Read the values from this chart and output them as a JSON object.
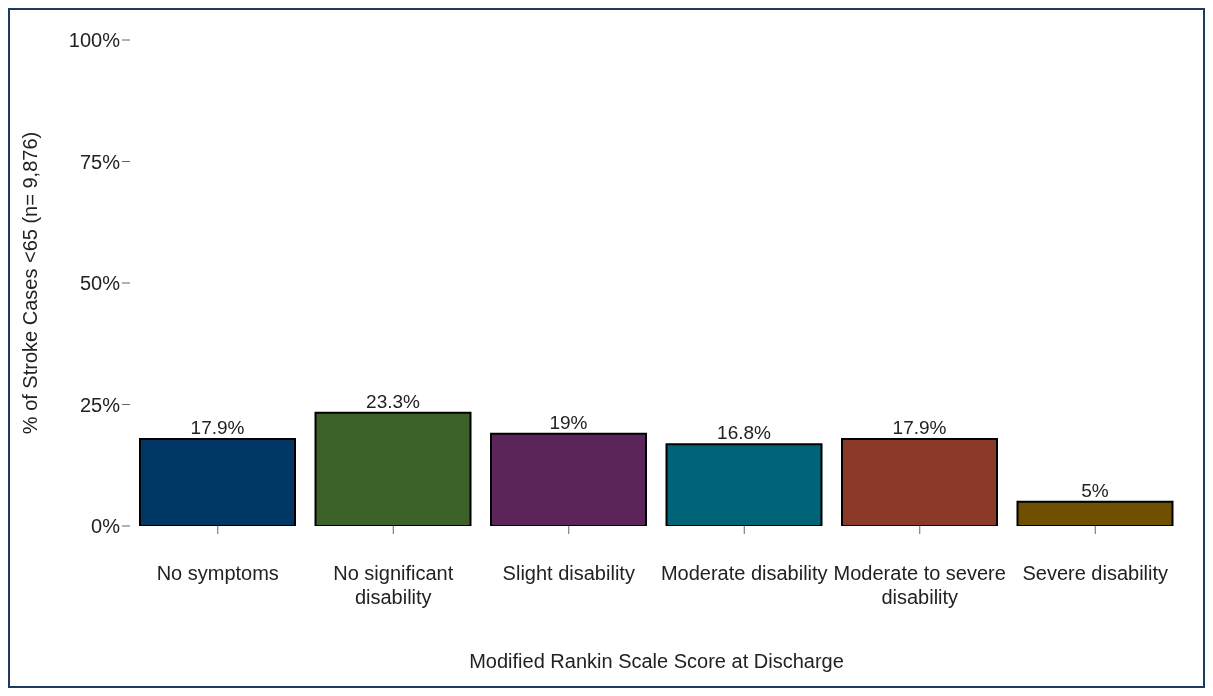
{
  "chart_data": {
    "type": "bar",
    "xlabel": "Modified Rankin Scale Score at Discharge",
    "ylabel": "% of Stroke Cases <65 (n= 9,876)",
    "categories": [
      "No symptoms",
      "No significant disability",
      "Slight disability",
      "Moderate disability",
      "Moderate to severe disability",
      "Severe disability"
    ],
    "values": [
      17.9,
      23.3,
      19,
      16.8,
      17.9,
      5
    ],
    "colors": [
      "#003764",
      "#3c6129",
      "#5c2559",
      "#006478",
      "#8b3a2a",
      "#6e5000"
    ],
    "value_labels": [
      "17.9%",
      "23.3%",
      "19%",
      "16.8%",
      "17.9%",
      "5%"
    ],
    "ylim": [
      0,
      100
    ],
    "yticks": [
      {
        "value": 0,
        "label": "0%"
      },
      {
        "value": 25,
        "label": "25%"
      },
      {
        "value": 50,
        "label": "50%"
      },
      {
        "value": 75,
        "label": "75%"
      },
      {
        "value": 100,
        "label": "100%"
      }
    ],
    "grid": false
  }
}
